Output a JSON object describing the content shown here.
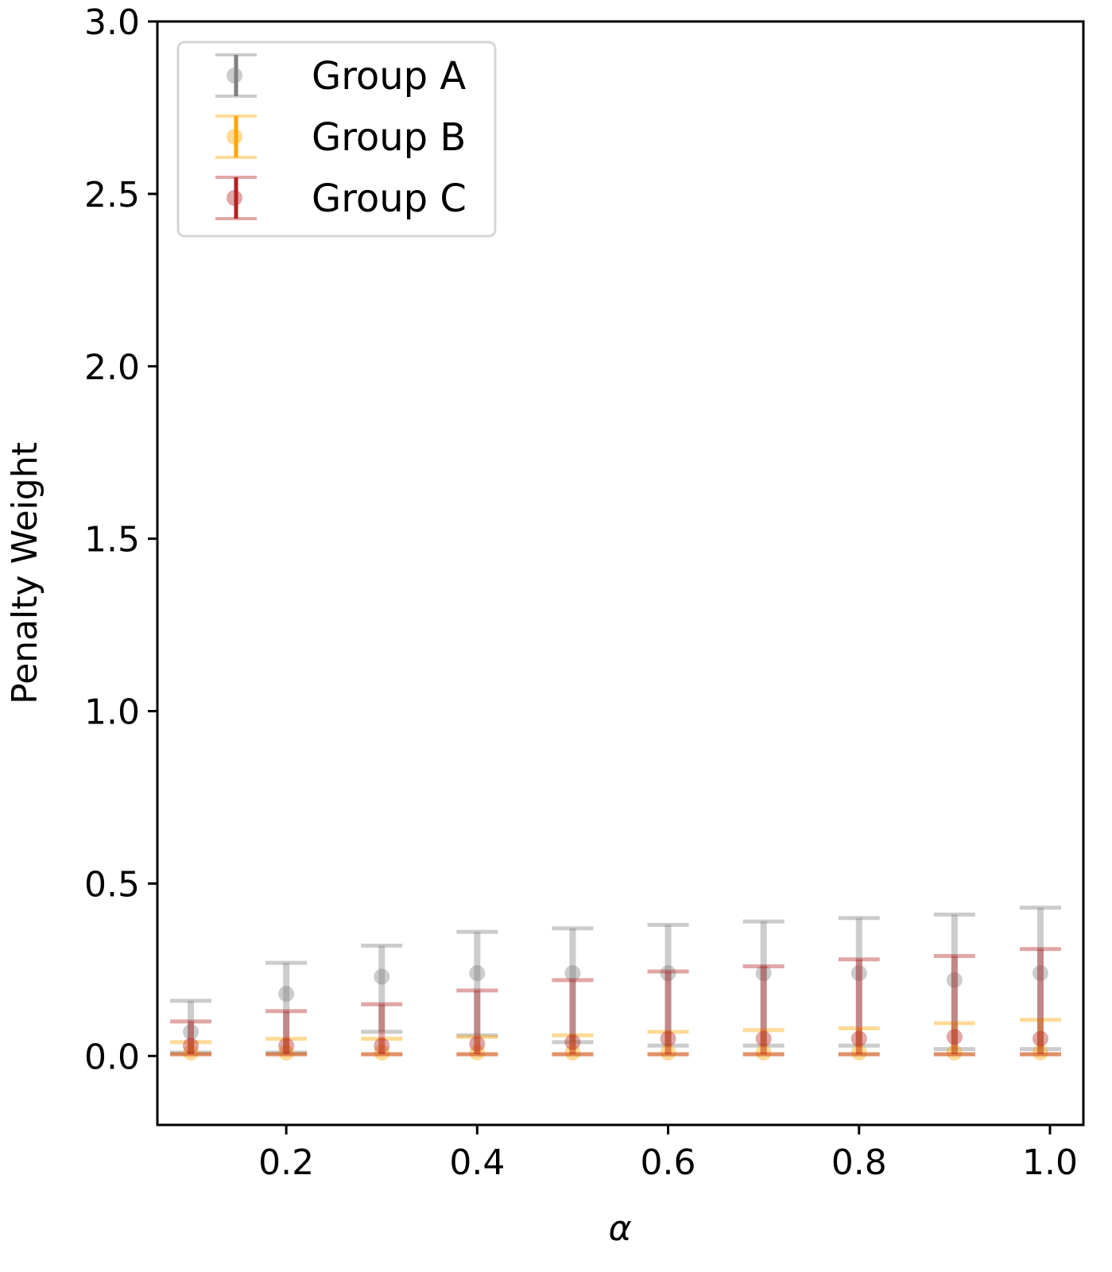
{
  "chart_data": {
    "type": "errorbar",
    "title": "",
    "xlabel": "α",
    "ylabel": "Penalty Weight",
    "xlim": [
      0.065,
      1.035
    ],
    "ylim": [
      -0.2,
      3.0
    ],
    "xticks": [
      0.2,
      0.4,
      0.6,
      0.8,
      1.0
    ],
    "xtick_labels": [
      "0.2",
      "0.4",
      "0.6",
      "0.8",
      "1.0"
    ],
    "yticks": [
      0.0,
      0.5,
      1.0,
      1.5,
      2.0,
      2.5,
      3.0
    ],
    "ytick_labels": [
      "0.0",
      "0.5",
      "1.0",
      "1.5",
      "2.0",
      "2.5",
      "3.0"
    ],
    "grid": false,
    "legend_position": "top-left",
    "x": [
      0.1,
      0.2,
      0.3,
      0.4,
      0.5,
      0.6,
      0.7,
      0.8,
      0.9,
      0.99
    ],
    "series": [
      {
        "name": "Group A",
        "color": "#808080",
        "values": [
          0.07,
          0.18,
          0.23,
          0.24,
          0.24,
          0.24,
          0.24,
          0.24,
          0.22,
          0.24
        ],
        "lower": [
          0.01,
          0.01,
          0.07,
          0.06,
          0.04,
          0.03,
          0.03,
          0.03,
          0.02,
          0.02
        ],
        "upper": [
          0.16,
          0.27,
          0.32,
          0.36,
          0.37,
          0.38,
          0.39,
          0.4,
          0.41,
          0.43
        ]
      },
      {
        "name": "Group B",
        "color": "#FFA500",
        "values": [
          0.01,
          0.01,
          0.01,
          0.01,
          0.01,
          0.01,
          0.01,
          0.01,
          0.01,
          0.01
        ],
        "lower": [
          0.005,
          0.005,
          0.005,
          0.005,
          0.005,
          0.005,
          0.005,
          0.005,
          0.005,
          0.005
        ],
        "upper": [
          0.04,
          0.05,
          0.05,
          0.055,
          0.06,
          0.07,
          0.075,
          0.08,
          0.095,
          0.105
        ]
      },
      {
        "name": "Group C",
        "color": "#B22222",
        "values": [
          0.03,
          0.03,
          0.03,
          0.035,
          0.04,
          0.05,
          0.05,
          0.05,
          0.055,
          0.05
        ],
        "lower": [
          0.005,
          0.005,
          0.005,
          0.005,
          0.005,
          0.005,
          0.005,
          0.005,
          0.005,
          0.005
        ],
        "upper": [
          0.1,
          0.13,
          0.15,
          0.19,
          0.22,
          0.245,
          0.26,
          0.28,
          0.29,
          0.31
        ]
      }
    ]
  }
}
